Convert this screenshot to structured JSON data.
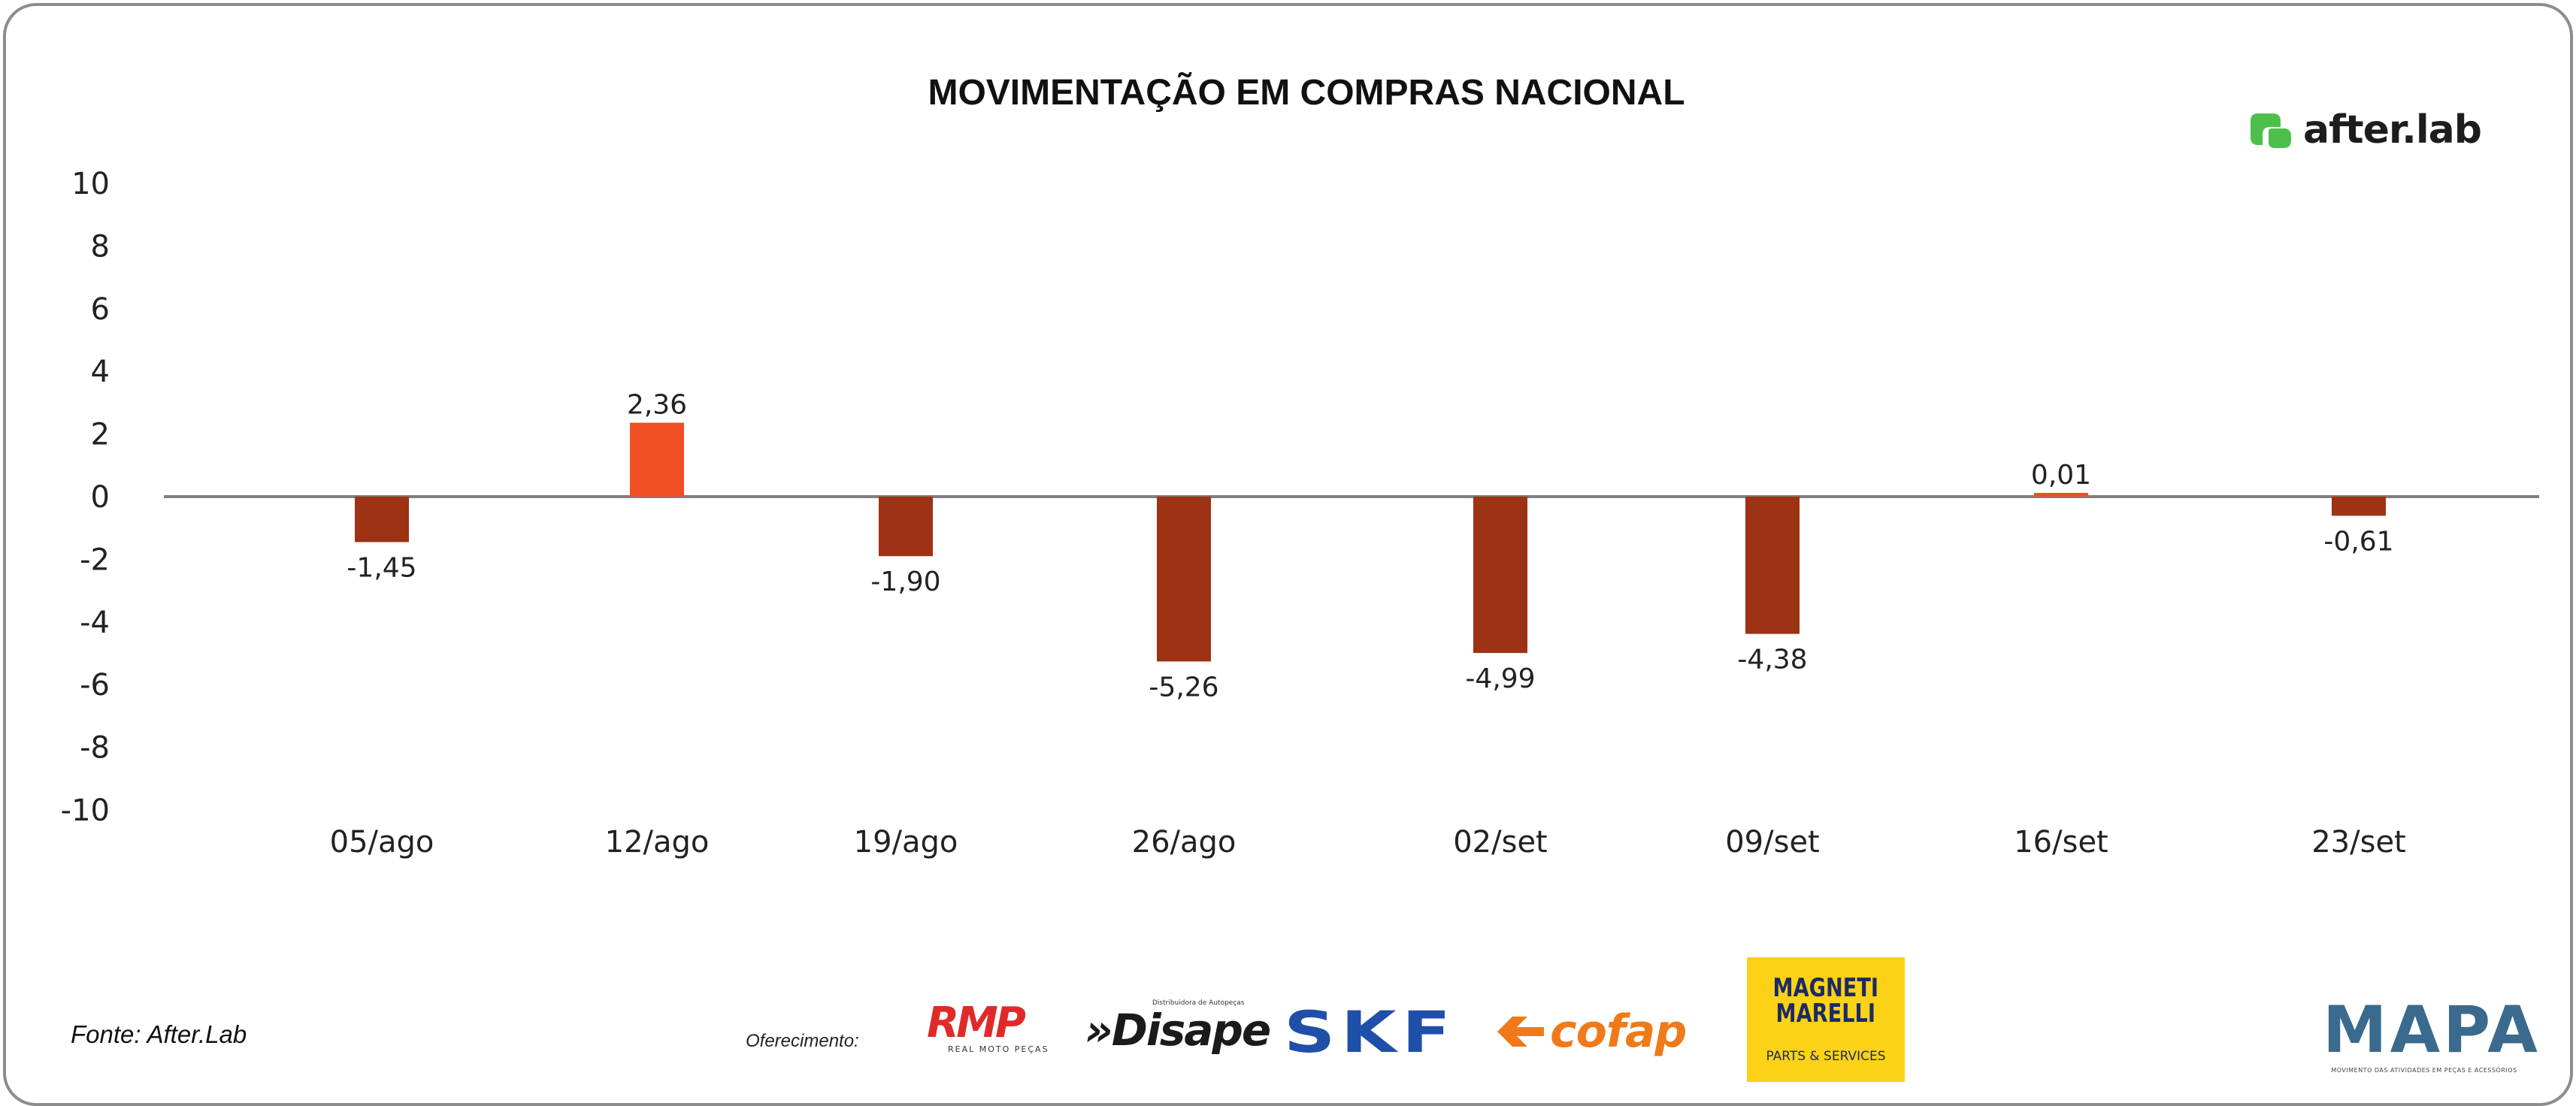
{
  "title": "MOVIMENTAÇÃO EM COMPRAS NACIONAL",
  "source": "Fonte: After.Lab",
  "sponsor_label": "Oferecimento:",
  "brand": {
    "afterlab": "after.lab",
    "afterlab_icon": "afterlab-logo-icon",
    "afterlab_color": "#4cc04a"
  },
  "sponsors": {
    "rmp": "RMP",
    "rmp_sub": "REAL MOTO PEÇAS",
    "disape_top": "Distribuidora de Autopeças",
    "disape": "»Disape",
    "skf": "SKF",
    "cofap": "cofap",
    "magneti_line1": "MAGNETI",
    "magneti_line2": "MARELLI",
    "magneti_sub": "PARTS & SERVICES"
  },
  "mapa": {
    "title": "MAPA",
    "subtitle": "MOVIMENTO DAS ATIVIDADES EM PEÇAS E ACESSÓRIOS"
  },
  "colors": {
    "negative": "#9e3214",
    "positive": "#f04e23",
    "baseline": "#808080"
  },
  "chart_data": {
    "type": "bar",
    "title": "MOVIMENTAÇÃO EM COMPRAS NACIONAL",
    "categories": [
      "05/ago",
      "12/ago",
      "19/ago",
      "26/ago",
      "02/set",
      "09/set",
      "16/set",
      "23/set"
    ],
    "values": [
      -1.45,
      2.36,
      -1.9,
      -5.26,
      -4.99,
      -4.38,
      0.01,
      -0.61
    ],
    "data_labels": [
      "-1,45",
      "2,36",
      "-1,90",
      "-5,26",
      "-4,99",
      "-4,38",
      "0,01",
      "-0,61"
    ],
    "ylim": [
      -10,
      10
    ],
    "yticks": [
      "10",
      "8",
      "6",
      "4",
      "2",
      "0",
      "-2",
      "-4",
      "-6",
      "-8",
      "-10"
    ],
    "grid": false,
    "legend": "none"
  }
}
